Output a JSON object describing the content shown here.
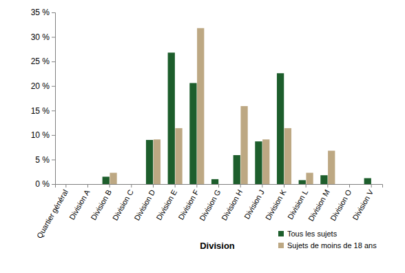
{
  "chart_data": {
    "type": "bar",
    "x_label": "Division",
    "categories": [
      "Quartier général",
      "Division A",
      "Division B",
      "Division C",
      "Division D",
      "Division E",
      "Division F",
      "Division G",
      "Division H",
      "Division J",
      "Division K",
      "Division L",
      "Division M",
      "Division O",
      "Division V"
    ],
    "series": [
      {
        "name": "Tous les sujets",
        "color": "#1d5e2c",
        "values": [
          0,
          0,
          1.5,
          0,
          9.0,
          26.8,
          20.6,
          1.0,
          5.9,
          8.7,
          22.6,
          0.8,
          1.8,
          0,
          1.2
        ]
      },
      {
        "name": "Sujets de moins de 18 ans",
        "color": "#bda883",
        "values": [
          0,
          0,
          2.3,
          0,
          9.1,
          11.4,
          31.8,
          0,
          15.9,
          9.1,
          11.4,
          2.3,
          6.8,
          0,
          0
        ]
      }
    ],
    "ylim": [
      0,
      35
    ],
    "yticks": [
      {
        "value": 0,
        "label": "0 %"
      },
      {
        "value": 5,
        "label": "5 %"
      },
      {
        "value": 10,
        "label": "10 %"
      },
      {
        "value": 15,
        "label": "15 %"
      },
      {
        "value": 20,
        "label": "20 %"
      },
      {
        "value": 25,
        "label": "25 %"
      },
      {
        "value": 30,
        "label": "30 %"
      },
      {
        "value": 35,
        "label": "35 %"
      }
    ],
    "grid": false,
    "legend": "lower right"
  }
}
